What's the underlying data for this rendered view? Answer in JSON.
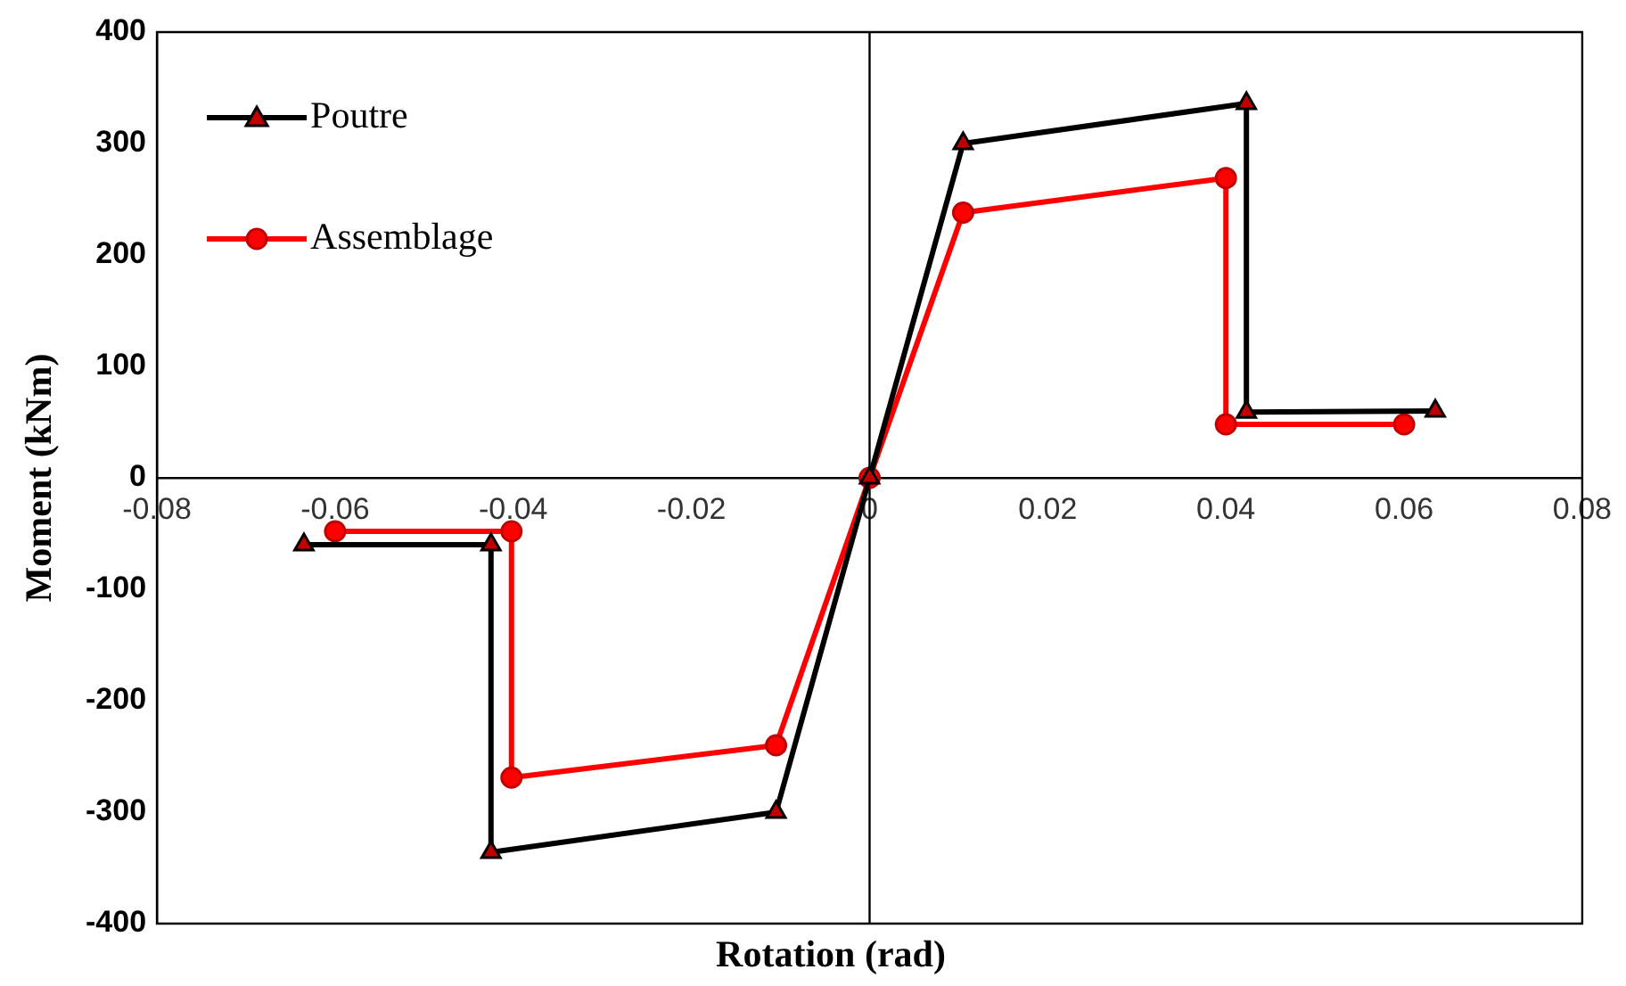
{
  "chart_data": {
    "type": "line",
    "xlabel": "Rotation (rad)",
    "ylabel": "Moment (kNm)",
    "xlim": [
      -0.08,
      0.08
    ],
    "xticks": [
      -0.08,
      -0.06,
      -0.04,
      -0.02,
      0,
      0.02,
      0.04,
      0.06,
      0.08
    ],
    "ylim": [
      -400,
      400
    ],
    "yticks": [
      -400,
      -300,
      -200,
      -100,
      0,
      100,
      200,
      300,
      400
    ],
    "grid": false,
    "legend": "top left",
    "ref_lines": [
      {
        "axis": "x",
        "value": 0,
        "color": "#000000"
      }
    ],
    "series": [
      {
        "name": "Poutre",
        "color": "#000000",
        "marker": "triangle",
        "x": [
          -0.0635,
          -0.0425,
          -0.0425,
          -0.0105,
          0,
          0.0105,
          0.0423,
          0.0423,
          0.0635
        ],
        "values": [
          -60,
          -60,
          -336,
          -300,
          0,
          300,
          336,
          59,
          60
        ]
      },
      {
        "name": "Assemblage",
        "color": "#ff0000",
        "marker": "circle",
        "x": [
          -0.06,
          -0.0402,
          -0.0402,
          -0.0105,
          0,
          0.0105,
          0.04,
          0.04,
          0.06
        ],
        "values": [
          -48,
          -48,
          -269,
          -240,
          0,
          238,
          269,
          48,
          48
        ]
      }
    ]
  }
}
